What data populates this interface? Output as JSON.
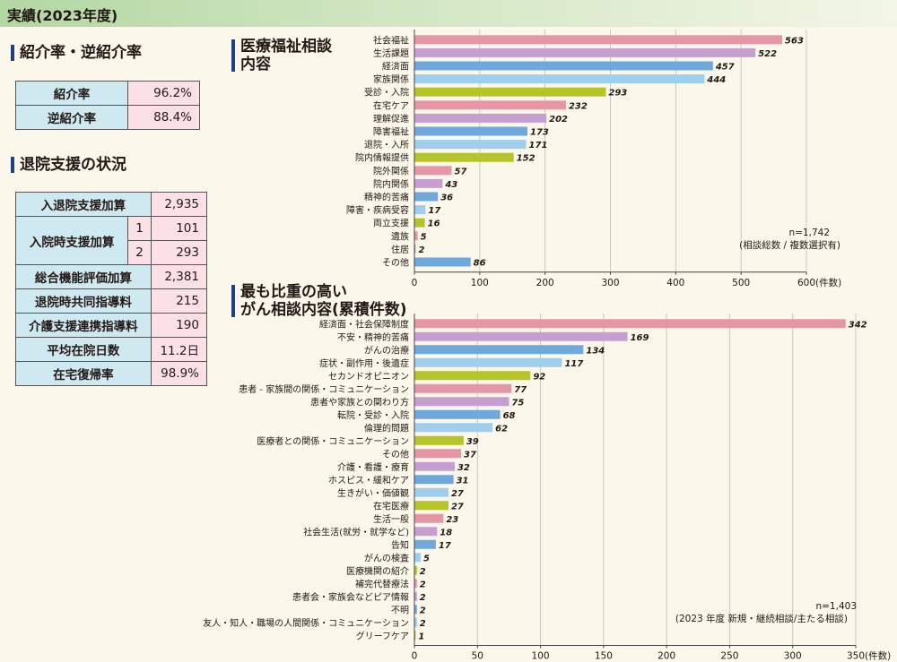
{
  "header": {
    "title": "実績(2023年度)"
  },
  "referral": {
    "title": "紹介率・逆紹介率",
    "rows": [
      {
        "label": "紹介率",
        "value": "96.2%"
      },
      {
        "label": "逆紹介率",
        "value": "88.4%"
      }
    ]
  },
  "discharge": {
    "title": "退院支援の状況",
    "rows": [
      {
        "label": "入退院支援加算",
        "value": "2,935"
      },
      {
        "label": "入院時支援加算",
        "sub": [
          {
            "num": "1",
            "value": "101"
          },
          {
            "num": "2",
            "value": "293"
          }
        ]
      },
      {
        "label": "総合機能評価加算",
        "value": "2,381"
      },
      {
        "label": "退院時共同指導料",
        "value": "215"
      },
      {
        "label": "介護支援連携指導料",
        "value": "190"
      },
      {
        "label": "平均在院日数",
        "value": "11.2日"
      },
      {
        "label": "在宅復帰率",
        "value": "98.9%"
      }
    ]
  },
  "chart_data": [
    {
      "type": "bar",
      "orientation": "horizontal",
      "title": "医療福祉相談内容",
      "categories": [
        "社会福祉",
        "生活課題",
        "経済面",
        "家族関係",
        "受診・入院",
        "在宅ケア",
        "理解促進",
        "障害福祉",
        "退院・入所",
        "院内情報提供",
        "院外関係",
        "院内関係",
        "精神的苦痛",
        "障害・疾病受容",
        "両立支援",
        "遺族",
        "住居",
        "その他"
      ],
      "values": [
        563,
        522,
        457,
        444,
        293,
        232,
        202,
        173,
        171,
        152,
        57,
        43,
        36,
        17,
        16,
        5,
        2,
        86
      ],
      "colors": [
        "#e597a7",
        "#c69fd0",
        "#6fa8dc",
        "#9ecfee",
        "#b5c428",
        "#e597a7",
        "#c69fd0",
        "#6fa8dc",
        "#9ecfee",
        "#b5c428",
        "#e597a7",
        "#c69fd0",
        "#6fa8dc",
        "#9ecfee",
        "#b5c428",
        "#e597a7",
        "#c69fd0",
        "#6fa8dc"
      ],
      "xlim": [
        0,
        600
      ],
      "xticks": [
        0,
        100,
        200,
        300,
        400,
        500,
        600
      ],
      "unit": "(件数)",
      "note1": "n=1,742",
      "note2": "(相談総数 / 複数選択有)"
    },
    {
      "type": "bar",
      "orientation": "horizontal",
      "title_line1": "最も比重の高い",
      "title_line2": "がん相談内容(累積件数)",
      "categories": [
        "経済面・社会保障制度",
        "不安・精神的苦痛",
        "がんの治療",
        "症状・副作用・後遺症",
        "セカンドオピニオン",
        "患者 - 家族間の関係・コミュニケーション",
        "患者や家族との関わり方",
        "転院・受診・入院",
        "倫理的問題",
        "医療者との関係・コミュニケーション",
        "その他",
        "介護・看護・療育",
        "ホスピス・緩和ケア",
        "生きがい・価値観",
        "在宅医療",
        "生活一般",
        "社会生活(就労・就学など)",
        "告知",
        "がんの検査",
        "医療機関の紹介",
        "補完代替療法",
        "患者会・家族会などピア情報",
        "不明",
        "友人・知人・職場の人間関係・コミュニケーション",
        "グリーフケア"
      ],
      "values": [
        342,
        169,
        134,
        117,
        92,
        77,
        75,
        68,
        62,
        39,
        37,
        32,
        31,
        27,
        27,
        23,
        18,
        17,
        5,
        2,
        2,
        2,
        2,
        2,
        1
      ],
      "colors": [
        "#e597a7",
        "#c69fd0",
        "#6fa8dc",
        "#9ecfee",
        "#b5c428",
        "#e597a7",
        "#c69fd0",
        "#6fa8dc",
        "#9ecfee",
        "#b5c428",
        "#e597a7",
        "#c69fd0",
        "#6fa8dc",
        "#9ecfee",
        "#b5c428",
        "#e597a7",
        "#c69fd0",
        "#6fa8dc",
        "#9ecfee",
        "#b5c428",
        "#e597a7",
        "#c69fd0",
        "#6fa8dc",
        "#9ecfee",
        "#b5c428"
      ],
      "xlim": [
        0,
        350
      ],
      "xticks": [
        0,
        50,
        100,
        150,
        200,
        250,
        300,
        350
      ],
      "unit": "(件数)",
      "note1": "n=1,403",
      "note2": "(2023 年度 新規・継続相談/主たる相談)"
    }
  ]
}
